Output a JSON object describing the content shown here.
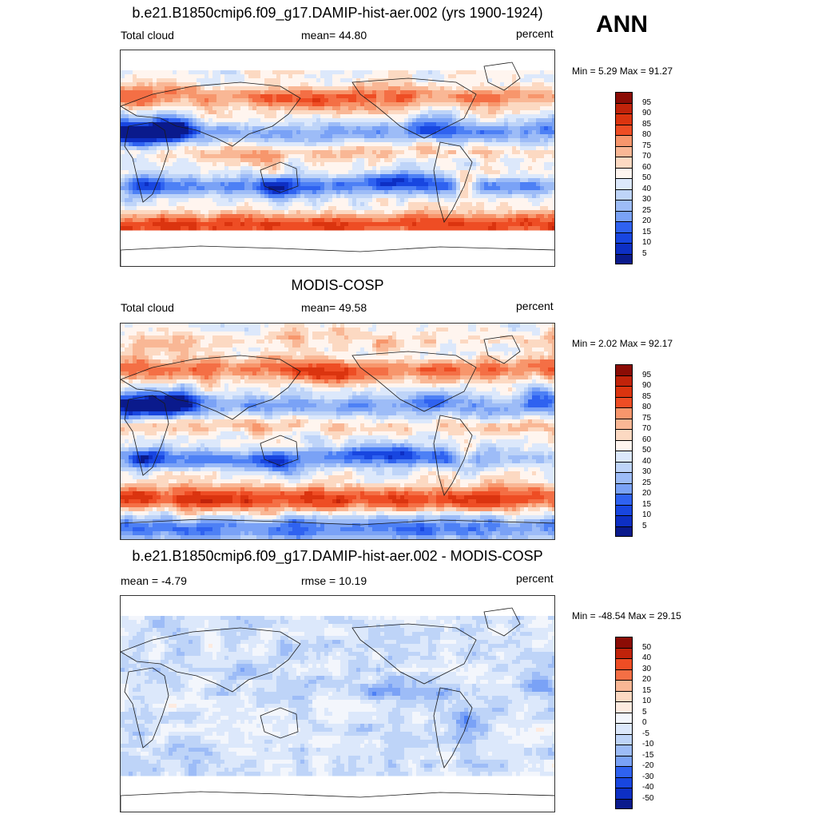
{
  "season": "ANN",
  "colors": {
    "ramp": [
      "#0a1a8c",
      "#0d2fc4",
      "#1846e0",
      "#2f62f0",
      "#4d80f5",
      "#7aa2f6",
      "#9dbcf7",
      "#bed4f8",
      "#dce8fb",
      "#fff5ef",
      "#fcd9c2",
      "#f9b795",
      "#f7966c",
      "#f46f45",
      "#ee4d24",
      "#db340f",
      "#c1230a",
      "#8b0c05"
    ],
    "diff": [
      "#0a1a8c",
      "#0d2fc4",
      "#1846e0",
      "#2f62f0",
      "#4d80f5",
      "#7aa2f6",
      "#9dbcf7",
      "#bed4f8",
      "#dce8fb",
      "#f3f6fc",
      "#fdebe0",
      "#fcd9c2",
      "#f9b795",
      "#f7966c",
      "#f46f45",
      "#ee4d24",
      "#c1230a",
      "#8b0c05"
    ],
    "coast": "#1a1a1a",
    "land_mask": "#ffffff"
  },
  "panels": [
    {
      "title": "b.e21.B1850cmip6.f09_g17.DAMIP-hist-aer.002 (yrs 1900-1924)",
      "left_label": "Total cloud",
      "center_label": "mean=  44.80",
      "right_label": "percent",
      "minmax": "Min =   5.29 Max =  91.27",
      "colorbar_labels": [
        "95",
        "90",
        "85",
        "80",
        "75",
        "70",
        "60",
        "50",
        "40",
        "30",
        "25",
        "20",
        "15",
        "10",
        "5"
      ],
      "field": {
        "min": 5.29,
        "max": 91.27,
        "mean": 44.8,
        "lat_range": [
          -60,
          72
        ]
      }
    },
    {
      "title": "MODIS-COSP",
      "left_label": "Total cloud",
      "center_label": "mean=  49.58",
      "right_label": "percent",
      "minmax": "Min =   2.02 Max =  92.17",
      "colorbar_labels": [
        "95",
        "90",
        "85",
        "80",
        "75",
        "70",
        "60",
        "50",
        "40",
        "30",
        "25",
        "20",
        "15",
        "10",
        "5"
      ],
      "field": {
        "min": 2.02,
        "max": 92.17,
        "mean": 49.58,
        "lat_range": [
          -90,
          90
        ]
      }
    },
    {
      "title": "b.e21.B1850cmip6.f09_g17.DAMIP-hist-aer.002 - MODIS-COSP",
      "left_label": "mean =  -4.79",
      "center_label": "rmse =  10.19",
      "right_label": "percent",
      "minmax": "Min = -48.54 Max =  29.15",
      "colorbar_labels": [
        "50",
        "40",
        "30",
        "20",
        "15",
        "10",
        "5",
        "0",
        "-5",
        "-10",
        "-15",
        "-20",
        "-30",
        "-40",
        "-50"
      ],
      "field": {
        "min": -48.54,
        "max": 29.15,
        "mean": -4.79,
        "rmse": 10.19,
        "lat_range": [
          -60,
          72
        ]
      }
    }
  ]
}
